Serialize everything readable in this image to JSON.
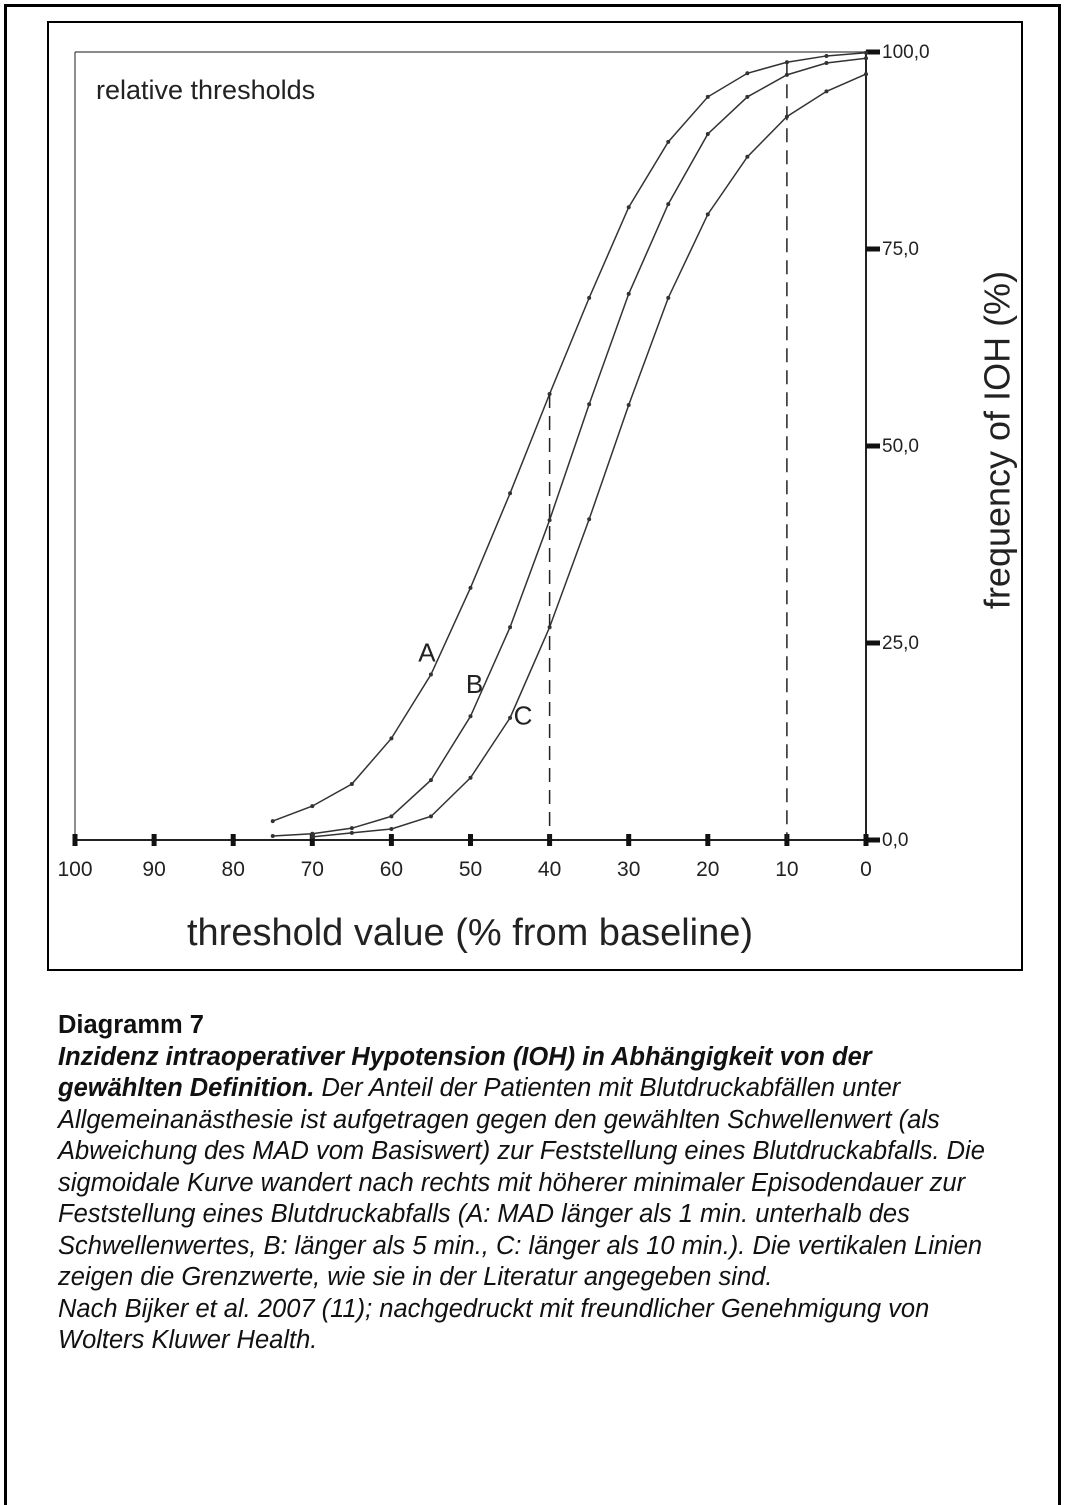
{
  "chart_data": {
    "type": "line",
    "annotation": "relative thresholds",
    "x_label": "threshold value (% from baseline)",
    "y_label": "frequency of IOH (%)",
    "x": [
      75,
      70,
      65,
      60,
      55,
      50,
      45,
      40,
      35,
      30,
      25,
      20,
      15,
      10,
      5,
      0
    ],
    "series": [
      {
        "name": "A",
        "color": "#333333",
        "values": [
          2.4,
          4.3,
          7.1,
          12.9,
          21,
          32,
          44,
          56.6,
          68.8,
          80.3,
          88.6,
          94.3,
          97.3,
          98.7,
          99.5,
          99.9
        ]
      },
      {
        "name": "B",
        "color": "#333333",
        "values": [
          0.5,
          0.8,
          1.5,
          3,
          7.6,
          15.7,
          27,
          40.6,
          55.3,
          69.3,
          80.7,
          89.6,
          94.3,
          97.1,
          98.6,
          99.2
        ]
      },
      {
        "name": "C",
        "color": "#333333",
        "values": [
          null,
          0.4,
          0.9,
          1.4,
          3,
          7.9,
          15.5,
          27,
          40.7,
          55.2,
          68.8,
          79.4,
          86.7,
          91.8,
          95,
          97.2
        ]
      }
    ],
    "reference_lines": [
      40,
      10
    ],
    "xlim": [
      100,
      0
    ],
    "xticks": [
      100,
      90,
      80,
      70,
      60,
      50,
      40,
      30,
      20,
      10,
      0
    ],
    "ylim": [
      0,
      100
    ],
    "yticks": [
      {
        "value": 0,
        "label": "0,0"
      },
      {
        "value": 25,
        "label": "25,0"
      },
      {
        "value": 50,
        "label": "50,0"
      },
      {
        "value": 75,
        "label": "75,0"
      },
      {
        "value": 100,
        "label": "100,0"
      }
    ]
  },
  "caption": {
    "label": "Diagramm 7",
    "title": "Inzidenz intraoperativer Hypotension (IOH) in Abhängigkeit von der gewählten Definition.",
    "body": "Der Anteil der Patienten mit Blutdruckabfällen unter Allgemeinanästhesie ist aufgetragen gegen den gewählten Schwellenwert (als Abweichung des MAD vom Basiswert) zur Feststellung eines Blutdruckabfalls. Die sigmoidale Kurve wandert nach rechts mit höherer minimaler Episodendauer zur Feststellung eines Blutdruckabfalls (A: MAD länger als 1 min. unterhalb des Schwellenwertes, B: länger als 5 min., C: länger als 10 min.). Die vertikalen Linien zeigen die Grenzwerte, wie sie in der Literatur angegeben sind.",
    "source": "Nach Bijker et al. 2007 (11); nachgedruckt mit freundlicher Genehmigung von Wolters Kluwer Health."
  }
}
